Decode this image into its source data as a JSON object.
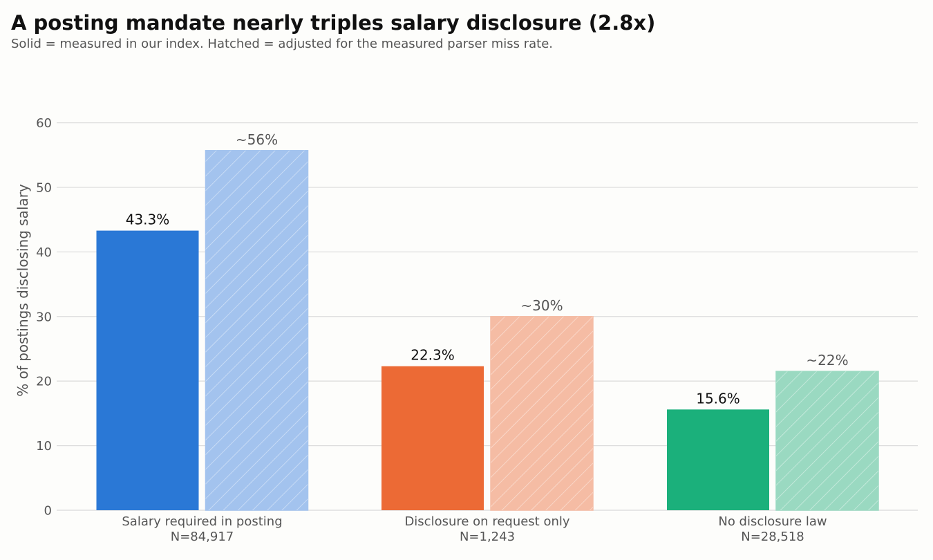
{
  "header": {
    "title": "A posting mandate nearly triples salary disclosure (2.8x)",
    "subtitle": "Solid = measured in our index.  Hatched = adjusted for the measured parser miss rate."
  },
  "chart_data": {
    "type": "bar",
    "title": "A posting mandate nearly triples salary disclosure (2.8x)",
    "subtitle": "Solid = measured in our index.  Hatched = adjusted for the measured parser miss rate.",
    "xlabel": "",
    "ylabel": "% of postings disclosing salary",
    "ylim": [
      0,
      63
    ],
    "yticks": [
      0,
      10,
      20,
      30,
      40,
      50,
      60
    ],
    "grid": true,
    "categories": [
      {
        "label": "Salary required in posting",
        "n": "N=84,917",
        "color": "#2a78d6",
        "light": "#a3c3ee"
      },
      {
        "label": "Disclosure on request only",
        "n": "N=1,243",
        "color": "#ec6a35",
        "light": "#f5bca4"
      },
      {
        "label": "No disclosure law",
        "n": "N=28,518",
        "color": "#1bb07b",
        "light": "#9ad9c1"
      }
    ],
    "series": [
      {
        "style": "solid",
        "values": [
          43.3,
          22.3,
          15.6
        ],
        "labels": [
          "43.3%",
          "22.3%",
          "15.6%"
        ]
      },
      {
        "style": "hatched",
        "values": [
          55.7,
          30.0,
          21.5
        ],
        "labels": [
          "~56%",
          "~30%",
          "~22%"
        ]
      }
    ]
  }
}
